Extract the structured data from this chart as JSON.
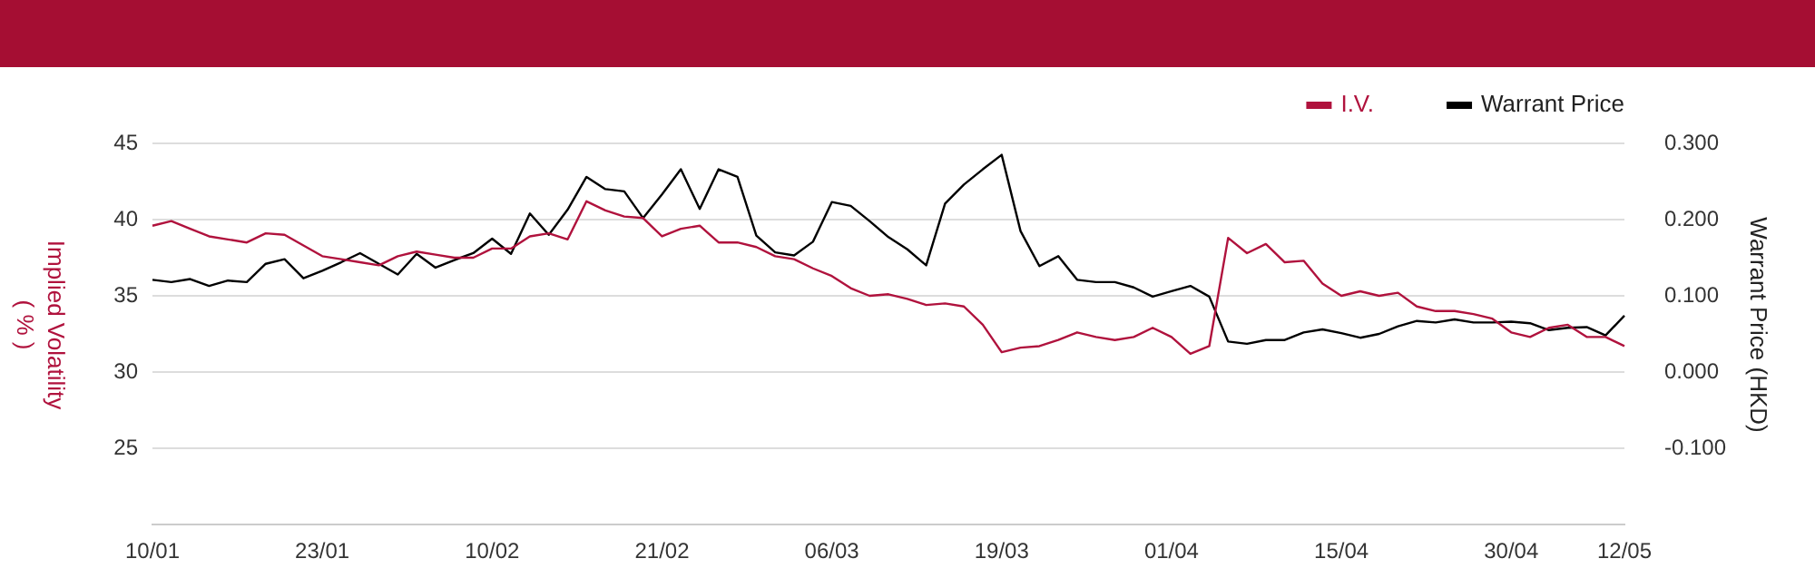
{
  "chart_data": {
    "type": "line",
    "categories": [
      "10/01",
      null,
      null,
      null,
      null,
      null,
      null,
      null,
      null,
      "23/01",
      null,
      null,
      null,
      null,
      null,
      null,
      null,
      null,
      "10/02",
      null,
      null,
      null,
      null,
      null,
      null,
      null,
      null,
      "21/02",
      null,
      null,
      null,
      null,
      null,
      null,
      null,
      null,
      "06/03",
      null,
      null,
      null,
      null,
      null,
      null,
      null,
      null,
      "19/03",
      null,
      null,
      null,
      null,
      null,
      null,
      null,
      null,
      "01/04",
      null,
      null,
      null,
      null,
      null,
      null,
      null,
      null,
      "15/04",
      null,
      null,
      null,
      null,
      null,
      null,
      null,
      null,
      "30/04",
      null,
      null,
      null,
      null,
      null,
      "12/05"
    ],
    "series": [
      {
        "name": "I.V.",
        "color": "#b0123d",
        "axis": "y",
        "values": [
          39.6,
          39.9,
          39.4,
          38.9,
          38.7,
          38.5,
          39.1,
          39.0,
          38.3,
          37.6,
          37.4,
          37.2,
          37.0,
          37.6,
          37.9,
          37.7,
          37.5,
          37.5,
          38.1,
          38.1,
          38.9,
          39.1,
          38.7,
          41.2,
          40.6,
          40.2,
          40.1,
          38.9,
          39.4,
          39.6,
          38.5,
          38.5,
          38.2,
          37.6,
          37.4,
          36.8,
          36.3,
          35.5,
          35.0,
          35.1,
          34.8,
          34.4,
          34.5,
          34.3,
          33.1,
          31.3,
          31.6,
          31.7,
          32.1,
          32.6,
          32.3,
          32.1,
          32.3,
          32.9,
          32.3,
          31.2,
          31.7,
          38.8,
          37.8,
          38.4,
          37.2,
          37.3,
          35.8,
          35.0,
          35.3,
          35.0,
          35.2,
          34.3,
          34.0,
          34.0,
          33.8,
          33.5,
          32.6,
          32.3,
          32.9,
          33.1,
          32.3,
          32.3,
          31.7
        ]
      },
      {
        "name": "Warrant Price",
        "color": "#000000",
        "axis": "y2",
        "values": [
          0.121,
          0.118,
          0.122,
          0.113,
          0.12,
          0.118,
          0.142,
          0.148,
          0.123,
          0.133,
          0.144,
          0.156,
          0.142,
          0.128,
          0.155,
          0.137,
          0.147,
          0.156,
          0.175,
          0.155,
          0.208,
          0.18,
          0.213,
          0.256,
          0.24,
          0.237,
          0.202,
          0.233,
          0.266,
          0.214,
          0.266,
          0.256,
          0.179,
          0.157,
          0.153,
          0.171,
          0.223,
          0.218,
          0.198,
          0.177,
          0.161,
          0.14,
          0.221,
          0.246,
          0.266,
          0.285,
          0.185,
          0.139,
          0.152,
          0.121,
          0.118,
          0.118,
          0.111,
          0.099,
          0.106,
          0.113,
          0.099,
          0.04,
          0.037,
          0.042,
          0.042,
          0.052,
          0.056,
          0.051,
          0.045,
          0.05,
          0.06,
          0.067,
          0.065,
          0.069,
          0.065,
          0.065,
          0.066,
          0.064,
          0.055,
          0.058,
          0.059,
          0.048,
          0.074
        ]
      }
    ],
    "ylabel": "Implied Volatility\n( % )",
    "y2label": "Warrant Price (HKD)",
    "ylim": [
      20,
      45
    ],
    "yticks": [
      25,
      30,
      35,
      40,
      45
    ],
    "y2lim": [
      -0.2,
      0.3
    ],
    "y2ticks": [
      {
        "value": -0.1,
        "label": "-0.100"
      },
      {
        "value": 0,
        "label": "0.000"
      },
      {
        "value": 0.1,
        "label": "0.100"
      },
      {
        "value": 0.2,
        "label": "0.200"
      },
      {
        "value": 0.3,
        "label": "0.300"
      }
    ],
    "grid": "y",
    "legend": "top right",
    "marker": "none",
    "line_style": "solid"
  }
}
